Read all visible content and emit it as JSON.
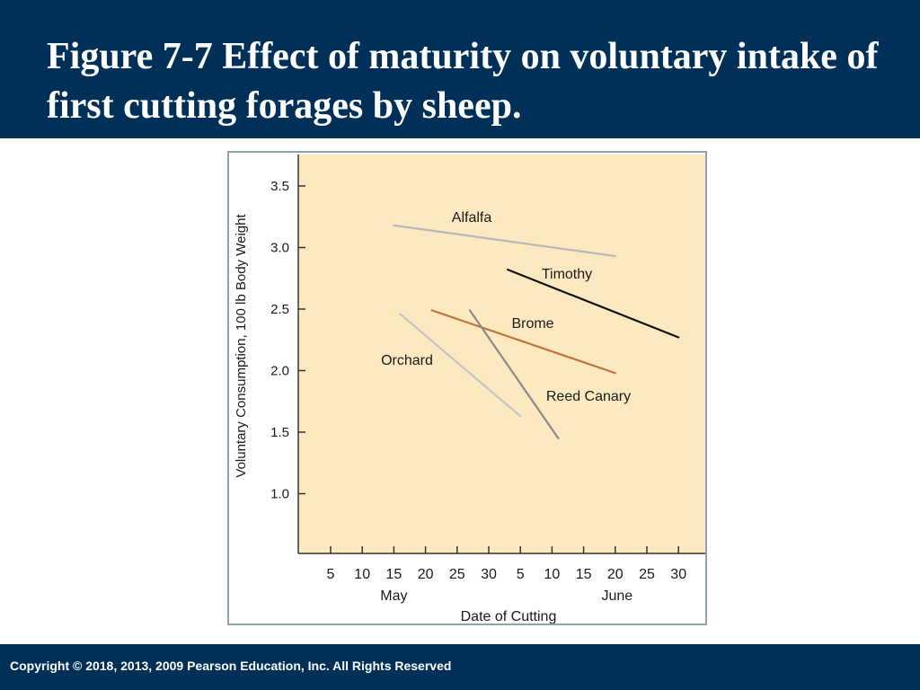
{
  "slide": {
    "title": "Figure 7-7 Effect of maturity on voluntary intake of first cutting forages by sheep.",
    "copyright": "Copyright © 2018, 2013, 2009 Pearson Education, Inc. All Rights Reserved"
  },
  "colors": {
    "header_bg": "#003057",
    "plot_bg": "#fde9c0",
    "frame": "#8aa3ad"
  },
  "chart_data": {
    "type": "line",
    "title": "",
    "xlabel": "Date of Cutting",
    "ylabel": "Voluntary Consumption, 100 lb Body Weight",
    "x_ticks": [
      "5",
      "10",
      "15",
      "20",
      "25",
      "30",
      "5",
      "10",
      "15",
      "20",
      "25",
      "30"
    ],
    "x_month_labels": [
      {
        "label": "May",
        "center_tick_index": 2
      },
      {
        "label": "June",
        "center_tick_index": 9
      }
    ],
    "y_ticks": [
      1.0,
      1.5,
      2.0,
      2.5,
      3.0,
      3.5
    ],
    "y_tick_labels": [
      "1.0",
      "1.5",
      "2.0",
      "2.5",
      "3.0",
      "3.5"
    ],
    "ylim": [
      0.55,
      3.6
    ],
    "grid": false,
    "legend": "direct labels",
    "series": [
      {
        "name": "Alfalfa",
        "color": "#b7b7b7",
        "x": [
          "May 15",
          "June 20"
        ],
        "y": [
          3.18,
          2.93
        ]
      },
      {
        "name": "Timothy",
        "color": "#111111",
        "x": [
          "June 3",
          "June 30"
        ],
        "y": [
          2.82,
          2.27
        ]
      },
      {
        "name": "Brome",
        "color": "#c0733a",
        "x": [
          "May 21",
          "June 20"
        ],
        "y": [
          2.49,
          1.98
        ]
      },
      {
        "name": "Reed Canary",
        "color": "#8a8a8a",
        "x": [
          "May 27",
          "June 11"
        ],
        "y": [
          2.49,
          1.45
        ]
      },
      {
        "name": "Orchard",
        "color": "#c4c4c4",
        "x": [
          "May 16",
          "June 5"
        ],
        "y": [
          2.46,
          1.63
        ]
      }
    ]
  }
}
